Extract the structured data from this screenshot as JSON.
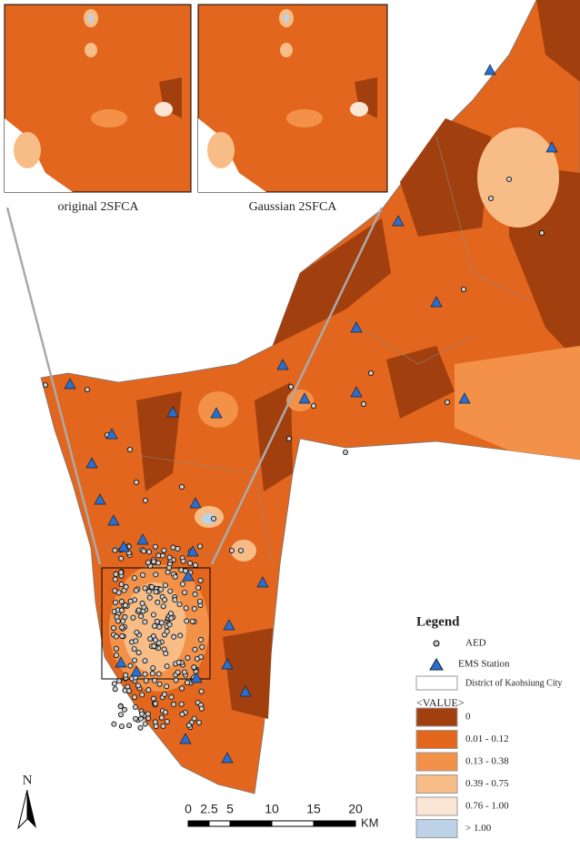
{
  "insets": [
    {
      "caption": "original 2SFCA"
    },
    {
      "caption": "Gaussian 2SFCA"
    }
  ],
  "legend": {
    "title": "Legend",
    "symbols": [
      {
        "label": "AED"
      },
      {
        "label": "EMS Station"
      },
      {
        "label": "District of Kaohsiung City"
      }
    ],
    "value_title": "<VALUE>",
    "classes": [
      {
        "label": "0",
        "color": "#a23f0f"
      },
      {
        "label": "0.01 - 0.12",
        "color": "#e2661e"
      },
      {
        "label": "0.13 - 0.38",
        "color": "#f39148"
      },
      {
        "label": "0.39 - 0.75",
        "color": "#f8bd86"
      },
      {
        "label": "0.76 - 1.00",
        "color": "#fbe6d6"
      },
      {
        "label": "> 1.00",
        "color": "#bcd2e6"
      }
    ]
  },
  "north": "N",
  "scale_bar": {
    "labels": [
      "0",
      "2.5",
      "5",
      "10",
      "15",
      "20"
    ],
    "unit": "KM"
  }
}
